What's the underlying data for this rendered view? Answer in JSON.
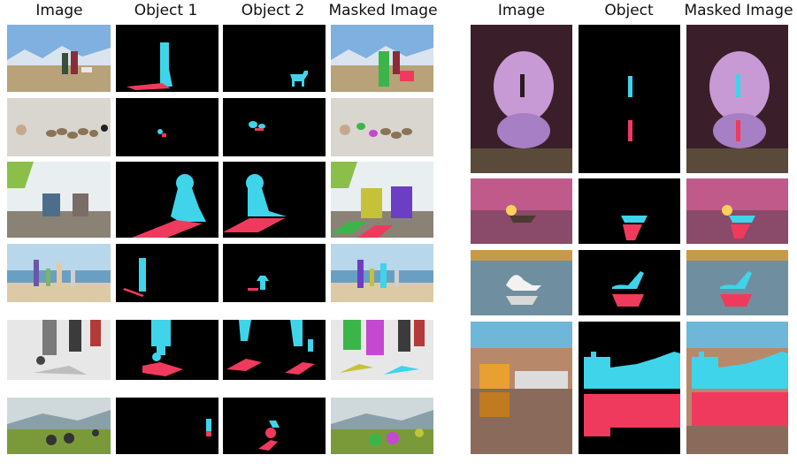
{
  "left_panel": {
    "headers": [
      "Image",
      "Object 1",
      "Object 2",
      "Masked Image"
    ]
  },
  "right_panel": {
    "headers": [
      "Image",
      "Object",
      "Masked Image"
    ]
  },
  "colors": {
    "mask_cyan": "#3fd4ea",
    "mask_red": "#ef3a5d",
    "mask_green": "#3bb54a",
    "mask_purple": "#6a3fc4",
    "background": "#000000"
  }
}
